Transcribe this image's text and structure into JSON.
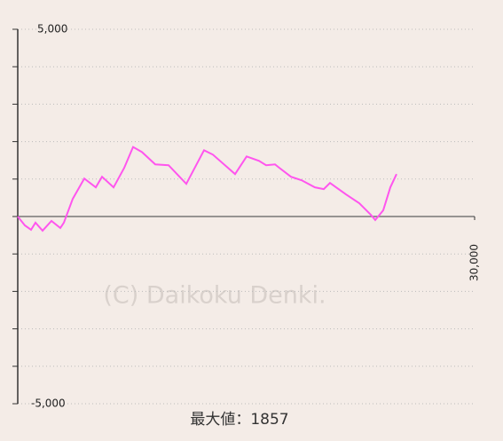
{
  "chart_data": {
    "type": "line",
    "x": [
      0,
      466,
      874,
      1165,
      1631,
      2214,
      2796,
      3029,
      3612,
      4369,
      5126,
      5534,
      6291,
      6990,
      7573,
      8155,
      9029,
      9903,
      11068,
      12233,
      12815,
      14271,
      15029,
      15844,
      16310,
      16893,
      17184,
      17941,
      18640,
      19514,
      20096,
      20504,
      21553,
      22426,
      23184,
      23475,
      23999,
      24465,
      24873
    ],
    "series": [
      {
        "color": "#ff55ee",
        "values": [
          0,
          -236,
          -354,
          -165,
          -378,
          -118,
          -307,
          -165,
          472,
          1014,
          778,
          1062,
          778,
          1298,
          1857,
          1722,
          1392,
          1369,
          873,
          1770,
          1652,
          1133,
          1605,
          1487,
          1369,
          1392,
          1298,
          1062,
          968,
          778,
          732,
          897,
          590,
          354,
          47,
          -94,
          165,
          778,
          1133
        ]
      }
    ],
    "xlim": [
      0,
      30000
    ],
    "xticks": [
      {
        "value": 30000,
        "label": "30,000"
      }
    ],
    "ylim": [
      -5000,
      5000
    ],
    "yticks": [
      {
        "value": -5000,
        "label": "-5,000"
      },
      {
        "value": 5000,
        "label": "5,000"
      }
    ],
    "yminor_ticks": [
      -4000,
      -3000,
      -2000,
      -1000,
      0,
      1000,
      2000,
      3000,
      4000
    ],
    "grid": true,
    "watermark": "(C) Daikoku Denki.",
    "caption": "最大値：1857"
  }
}
